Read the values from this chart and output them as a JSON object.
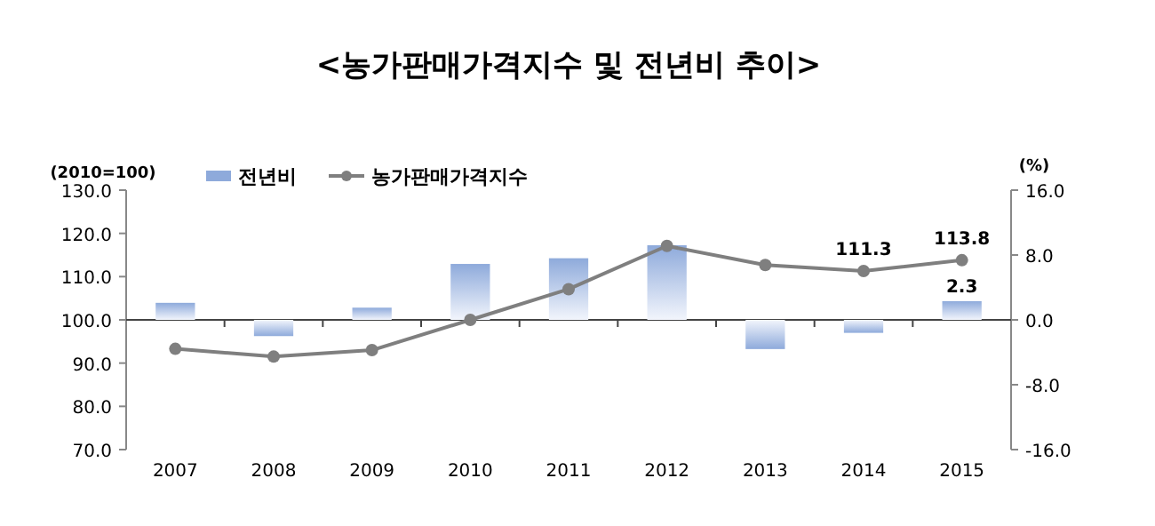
{
  "chart_data": {
    "type": "bar",
    "title": "<농가판매가격지수 및 전년비 추이>",
    "categories": [
      "2007",
      "2008",
      "2009",
      "2010",
      "2011",
      "2012",
      "2013",
      "2014",
      "2015"
    ],
    "series": [
      {
        "name": "전년비",
        "axis": "y2",
        "color": "#8eaadb",
        "values": [
          2.1,
          -2.0,
          1.5,
          6.9,
          7.6,
          9.2,
          -3.6,
          -1.6,
          2.3
        ],
        "value_labels": [
          null,
          null,
          null,
          null,
          null,
          null,
          null,
          null,
          "2.3"
        ]
      },
      {
        "name": "농가판매가격지수",
        "type": "line",
        "color": "#7f7f7f",
        "marker": "circle",
        "line_style": "solid",
        "values": [
          93.3,
          91.5,
          93.0,
          100.0,
          107.1,
          117.1,
          112.7,
          111.3,
          113.8
        ],
        "value_labels": [
          null,
          null,
          null,
          null,
          null,
          null,
          null,
          "111.3",
          "113.8"
        ]
      }
    ],
    "ylabel": "(2010=100)",
    "y2label": "(%)",
    "ylim": [
      70,
      130
    ],
    "yticks": [
      {
        "value": 70,
        "label": "70.0"
      },
      {
        "value": 80,
        "label": "80.0"
      },
      {
        "value": 90,
        "label": "90.0"
      },
      {
        "value": 100,
        "label": "100.0"
      },
      {
        "value": 110,
        "label": "110.0"
      },
      {
        "value": 120,
        "label": "120.0"
      },
      {
        "value": 130,
        "label": "130.0"
      }
    ],
    "y2lim": [
      -16,
      16
    ],
    "y2ticks": [
      {
        "value": -16,
        "label": "-16.0"
      },
      {
        "value": -8,
        "label": "-8.0"
      },
      {
        "value": 0,
        "label": "0.0"
      },
      {
        "value": 8,
        "label": "8.0"
      },
      {
        "value": 16,
        "label": "16.0"
      }
    ],
    "legend": "top"
  }
}
